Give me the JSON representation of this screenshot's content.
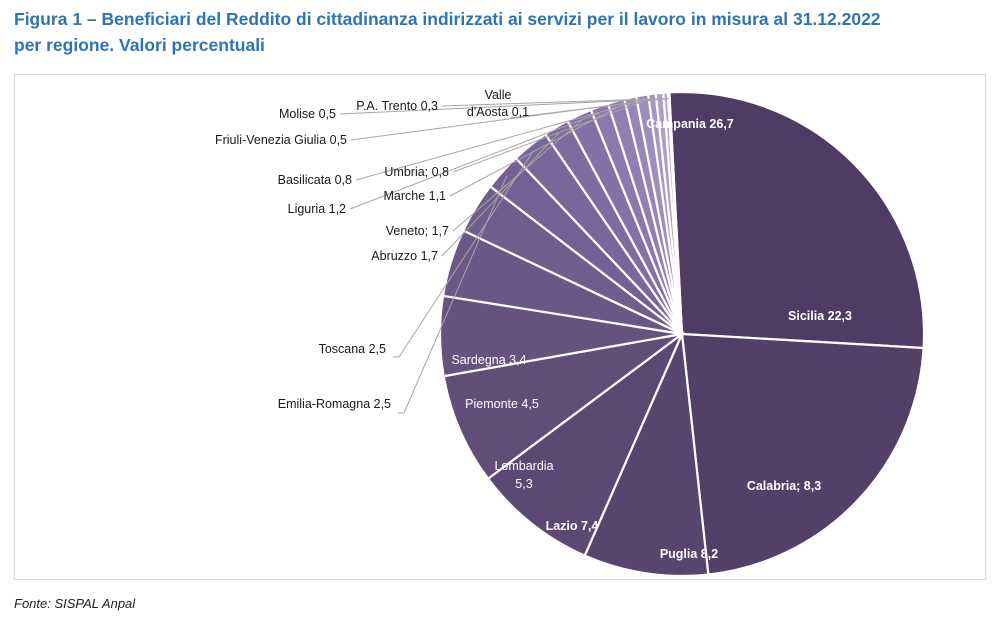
{
  "title_line1": "Figura 1 – Beneficiari del Reddito di cittadinanza indirizzati ai servizi per il lavoro in misura al 31.12.2022",
  "title_line2": "per regione. Valori percentuali",
  "source": "Fonte: SISPAL Anpal",
  "chart_data": {
    "type": "pie",
    "title": "Figura 1 – Beneficiari del Reddito di cittadinanza indirizzati ai servizi per il lavoro in misura al 31.12.2022 per regione. Valori percentuali",
    "legend": "none",
    "slices": [
      {
        "name": "Campania",
        "value": 26.7,
        "label": "Campania 26,7",
        "color": "#4F3B63"
      },
      {
        "name": "Sicilia",
        "value": 22.3,
        "label": "Sicilia 22,3",
        "color": "#544067"
      },
      {
        "name": "Calabria",
        "value": 8.3,
        "label": "Calabria; 8,3",
        "color": "#58446D"
      },
      {
        "name": "Puglia",
        "value": 8.2,
        "label": "Puglia 8,2",
        "color": "#5D4873"
      },
      {
        "name": "Lazio",
        "value": 7.4,
        "label": "Lazio 7,4",
        "color": "#624D79"
      },
      {
        "name": "Lombardia",
        "value": 5.3,
        "label": "Lombardia\n5,3",
        "color": "#67527F"
      },
      {
        "name": "Piemonte",
        "value": 4.5,
        "label": "Piemonte 4,5",
        "color": "#6B5787"
      },
      {
        "name": "Sardegna",
        "value": 3.4,
        "label": "Sardegna 3,4",
        "color": "#705C8D"
      },
      {
        "name": "Emilia-Romagna",
        "value": 2.5,
        "label": "Emilia-Romagna 2,5",
        "color": "#746094"
      },
      {
        "name": "Toscana",
        "value": 2.5,
        "label": "Toscana 2,5",
        "color": "#79669A"
      },
      {
        "name": "Abruzzo",
        "value": 1.7,
        "label": "Abruzzo 1,7",
        "color": "#7E6BA0"
      },
      {
        "name": "Veneto",
        "value": 1.7,
        "label": "Veneto; 1,7",
        "color": "#8571A6"
      },
      {
        "name": "Liguria",
        "value": 1.2,
        "label": "Liguria 1,2",
        "color": "#8B78AC"
      },
      {
        "name": "Marche",
        "value": 1.1,
        "label": "Marche 1,1",
        "color": "#927FB2"
      },
      {
        "name": "Basilicata",
        "value": 0.8,
        "label": "Basilicata 0,8",
        "color": "#9986B8"
      },
      {
        "name": "Umbria",
        "value": 0.8,
        "label": "Umbria; 0,8",
        "color": "#A08DBD"
      },
      {
        "name": "Friuli-Venezia Giulia",
        "value": 0.5,
        "label": "Friuli-Venezia Giulia 0,5",
        "color": "#A795C3"
      },
      {
        "name": "Molise",
        "value": 0.5,
        "label": "Molise 0,5",
        "color": "#AF9DC8"
      },
      {
        "name": "P.A. Trento",
        "value": 0.3,
        "label": "P.A. Trento 0,3",
        "color": "#B7A6CE"
      },
      {
        "name": "Valle d'Aosta",
        "value": 0.1,
        "label": "Valle\nd'Aosta 0,1",
        "color": "#BFAFD3"
      }
    ]
  }
}
